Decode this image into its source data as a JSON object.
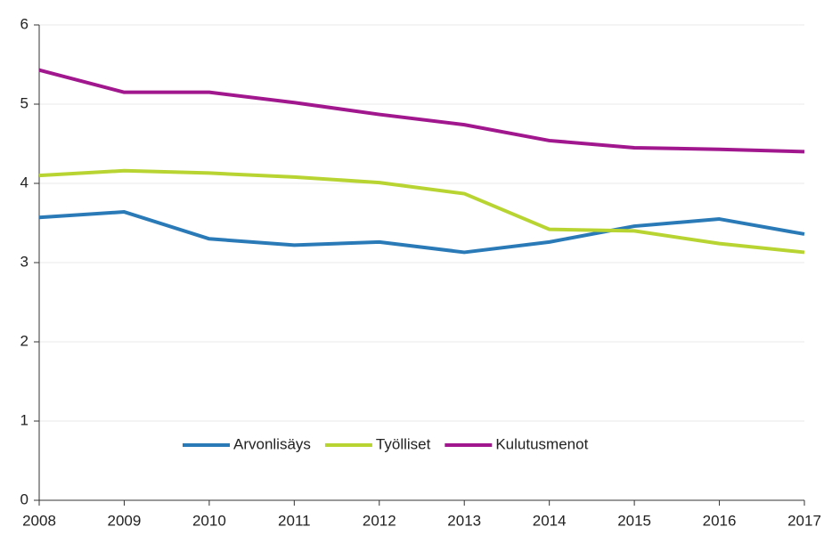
{
  "chart_data": {
    "type": "line",
    "x": [
      2008,
      2009,
      2010,
      2011,
      2012,
      2013,
      2014,
      2015,
      2016,
      2017
    ],
    "series": [
      {
        "name": "Arvonlisäys",
        "color": "#2a7ab8",
        "values": [
          3.57,
          3.64,
          3.3,
          3.22,
          3.26,
          3.13,
          3.26,
          3.46,
          3.55,
          3.36
        ]
      },
      {
        "name": "Työlliset",
        "color": "#b8d432",
        "values": [
          4.1,
          4.16,
          4.13,
          4.08,
          4.01,
          3.87,
          3.42,
          3.4,
          3.24,
          3.13
        ]
      },
      {
        "name": "Kulutusmenot",
        "color": "#a1178d",
        "values": [
          5.43,
          5.15,
          5.15,
          5.02,
          4.87,
          4.74,
          4.54,
          4.45,
          4.43,
          4.4
        ]
      }
    ],
    "xlim": [
      2008,
      2017
    ],
    "xticks": [
      2008,
      2009,
      2010,
      2011,
      2012,
      2013,
      2014,
      2015,
      2016,
      2017
    ],
    "ylim": [
      0,
      6
    ],
    "yticks": [
      0,
      1,
      2,
      3,
      4,
      5,
      6
    ],
    "grid": true,
    "legend": "bottom"
  }
}
